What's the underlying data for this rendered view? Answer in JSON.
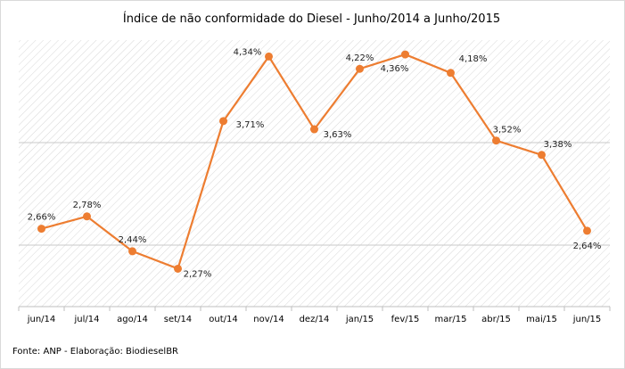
{
  "chart_data": {
    "type": "line",
    "title": "Índice de não conformidade do Diesel - Junho/2014 a Junho/2015",
    "categories": [
      "jun/14",
      "jul/14",
      "ago/14",
      "set/14",
      "out/14",
      "nov/14",
      "dez/14",
      "jan/15",
      "fev/15",
      "mar/15",
      "abr/15",
      "mai/15",
      "jun/15"
    ],
    "series": [
      {
        "values": [
          2.66,
          2.78,
          2.44,
          2.27,
          3.71,
          4.34,
          3.63,
          4.22,
          4.36,
          4.18,
          3.52,
          3.38,
          2.64
        ],
        "labels": [
          "2,66%",
          "2,78%",
          "2,44%",
          "2,27%",
          "3,71%",
          "4,34%",
          "3,63%",
          "4,22%",
          "4,36%",
          "4,18%",
          "3,52%",
          "3,38%",
          "2,64%"
        ],
        "color": "#ed7d31"
      }
    ],
    "ylim": [
      1.9,
      4.5
    ],
    "grid": true,
    "gridPattern": "diagonal hatch",
    "legend": "none",
    "xlabel": "",
    "ylabel": ""
  },
  "footer": {
    "source": "Fonte: ANP - Elaboração: BiodieselBR"
  }
}
